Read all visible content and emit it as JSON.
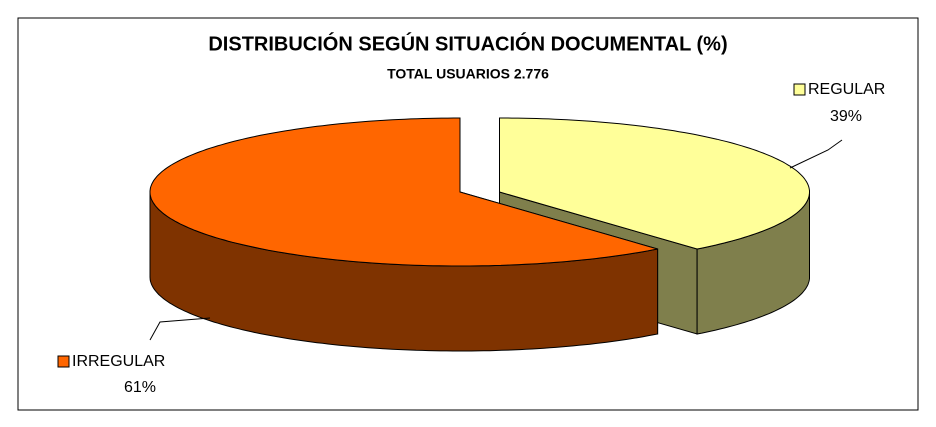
{
  "chart_data": {
    "type": "pie",
    "title": "DISTRIBUCIÓN SEGÚN SITUACIÓN DOCUMENTAL (%)",
    "subtitle": "TOTAL USUARIOS 2.776",
    "categories": [
      "REGULAR",
      "IRREGULAR"
    ],
    "values": [
      39,
      61
    ],
    "value_labels": [
      "39%",
      "61%"
    ],
    "colors": [
      "#ffff99",
      "#ff6600"
    ]
  }
}
